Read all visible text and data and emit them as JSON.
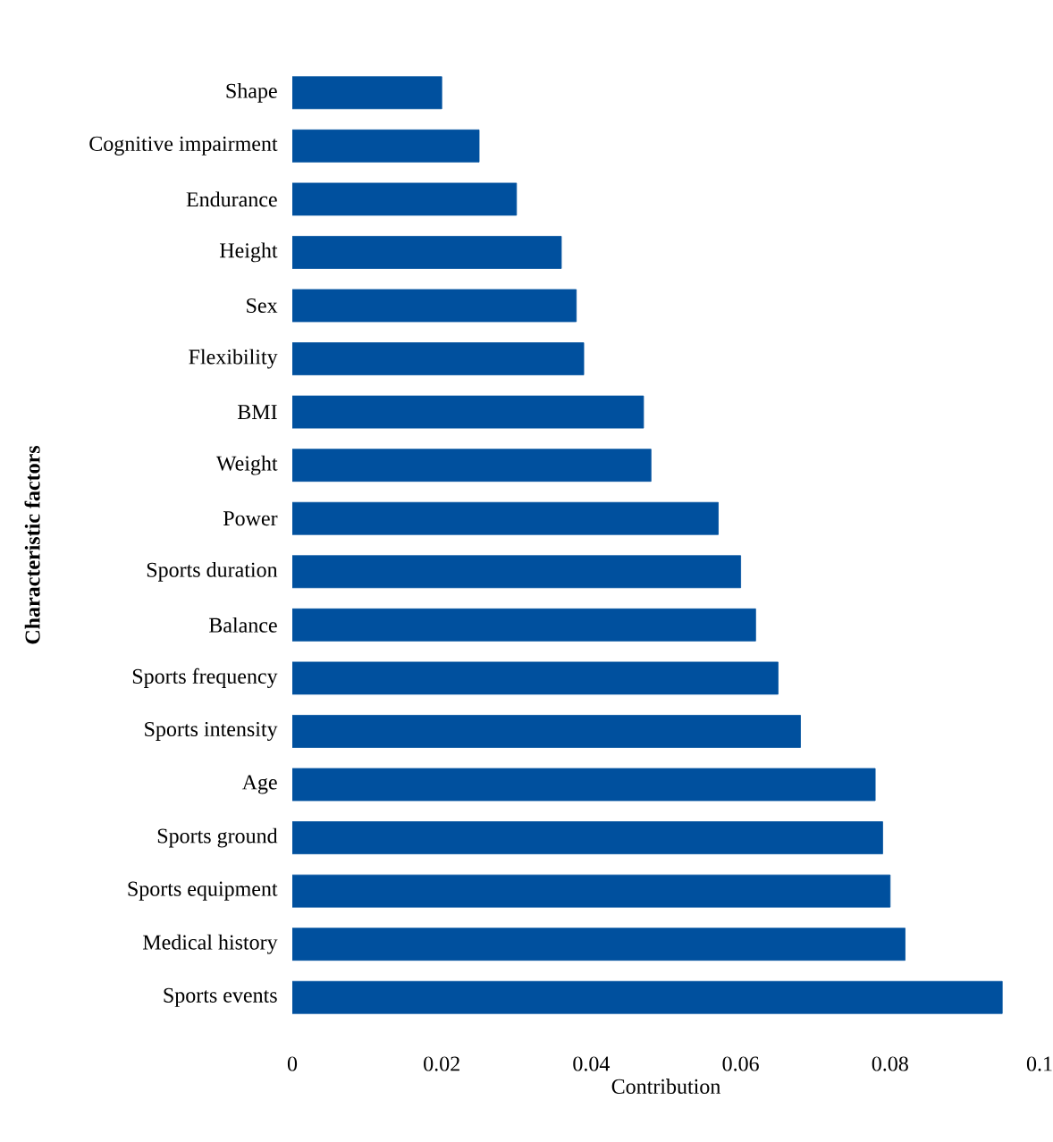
{
  "chart_data": {
    "type": "bar",
    "orientation": "horizontal",
    "xlabel": "Contribution",
    "ylabel": "Characteristic factors",
    "categories": [
      "Shape",
      "Cognitive impairment",
      "Endurance",
      "Height",
      "Sex",
      "Flexibility",
      "BMI",
      "Weight",
      "Power",
      "Sports duration",
      "Balance",
      "Sports frequency",
      "Sports intensity",
      "Age",
      "Sports ground",
      "Sports equipment",
      "Medical history",
      "Sports events"
    ],
    "values": [
      0.02,
      0.025,
      0.03,
      0.036,
      0.038,
      0.039,
      0.047,
      0.048,
      0.057,
      0.06,
      0.062,
      0.065,
      0.068,
      0.078,
      0.079,
      0.08,
      0.082,
      0.095
    ],
    "color": "#00509e",
    "xlim": [
      0,
      0.1
    ],
    "xticks": [
      0,
      0.02,
      0.04,
      0.06,
      0.08,
      0.1
    ],
    "grid": false
  }
}
